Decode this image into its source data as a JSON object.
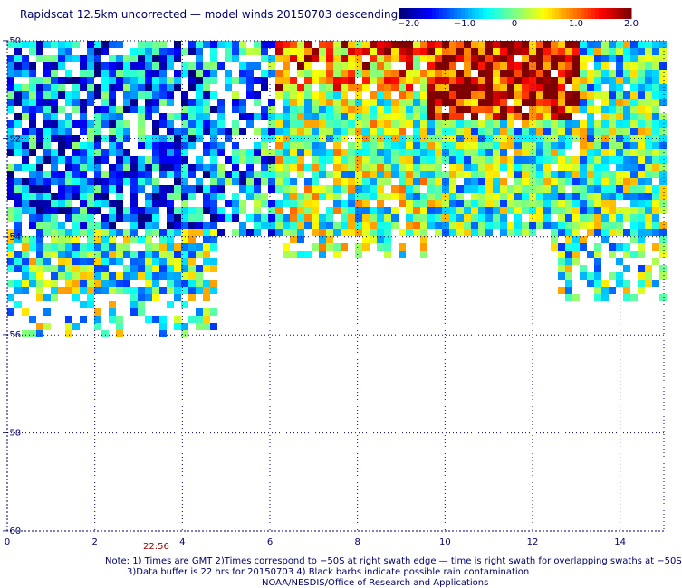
{
  "title": "Rapidscat 12.5km uncorrected — model winds 20150703 descending",
  "colorbar": {
    "ticks": [
      "−2.0",
      "−1.0",
      "0",
      "1.0",
      "2.0"
    ],
    "range": [
      -2.0,
      2.0
    ],
    "colors": [
      "#00007f",
      "#0000ff",
      "#0080ff",
      "#00ffff",
      "#80ff80",
      "#ffff00",
      "#ff8000",
      "#ff0000",
      "#7f0000"
    ]
  },
  "axes": {
    "x_ticks": [
      "0",
      "2",
      "4",
      "6",
      "8",
      "10",
      "12",
      "14"
    ],
    "y_ticks": [
      "−50",
      "−52",
      "−54",
      "−56",
      "−58",
      "−60"
    ],
    "x_range": [
      0,
      15
    ],
    "y_range": [
      -50,
      -60
    ]
  },
  "time_label": "22:56",
  "notes": [
    "Note: 1) Times are GMT 2)Times correspond to −50S at right swath edge — time is right swath for overlapping swaths at −50S",
    "3)Data buffer is 22 hrs for 20150703 4) Black barbs indicate possible rain contamination",
    "NOAA/NESDIS/Office of Research and Applications"
  ]
}
